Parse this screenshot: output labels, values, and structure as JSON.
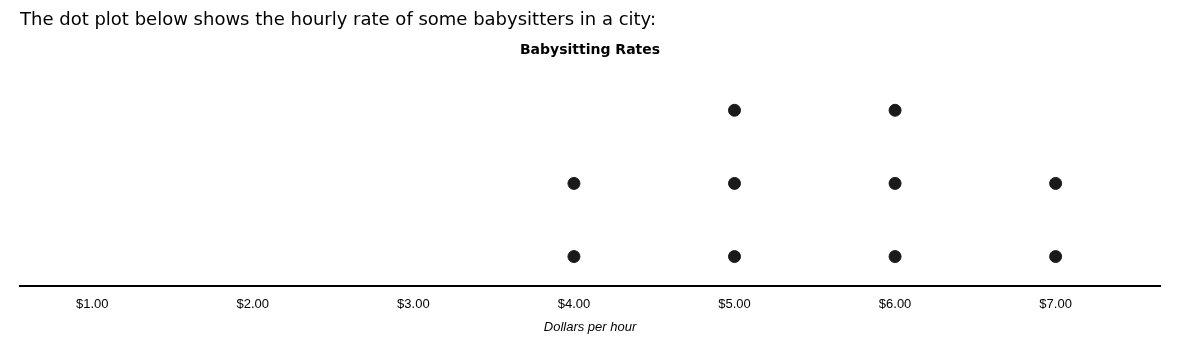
{
  "chart_data": {
    "type": "dot",
    "title": "Babysitting Rates",
    "subtitle": "The dot plot below shows the hourly rate of some babysitters in a city:",
    "x_label": "Dollars per hour",
    "x": [
      4.0,
      5.0,
      6.0,
      7.0
    ],
    "values": [
      2,
      3,
      3,
      2
    ],
    "color": "#1a1a1a",
    "xlim": [
      0.55,
      7.65
    ],
    "xticks": [
      {
        "value": 1.0,
        "label": "$1.00"
      },
      {
        "value": 2.0,
        "label": "$2.00"
      },
      {
        "value": 3.0,
        "label": "$3.00"
      },
      {
        "value": 4.0,
        "label": "$4.00"
      },
      {
        "value": 5.0,
        "label": "$5.00"
      },
      {
        "value": 6.0,
        "label": "$6.00"
      },
      {
        "value": 7.0,
        "label": "$7.00"
      }
    ],
    "tick_labels": "x",
    "grid": false
  }
}
